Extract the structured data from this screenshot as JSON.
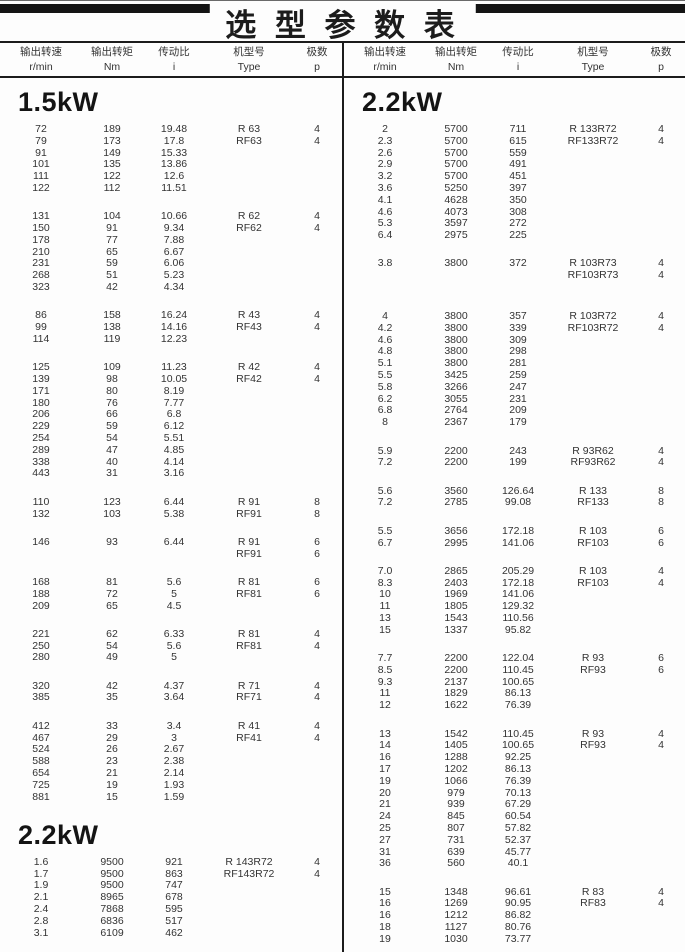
{
  "title": "选 型 参 数 表",
  "colors": {
    "ink": "#1c1c1c",
    "text": "#333333",
    "top_bar": "#141414",
    "background": "#fdfdfd"
  },
  "header": {
    "columns": [
      {
        "key": "speed",
        "cn": "输出转速",
        "unit": "r/min"
      },
      {
        "key": "torque",
        "cn": "输出转矩",
        "unit": "Nm"
      },
      {
        "key": "ratio",
        "cn": "传动比",
        "unit": "i"
      },
      {
        "key": "type",
        "cn": "机型号",
        "unit": "Type"
      },
      {
        "key": "poles",
        "cn": "极数",
        "unit": "p"
      }
    ]
  },
  "left_column": {
    "sections": [
      {
        "heading": "1.5kW",
        "groups": [
          {
            "rows": [
              [
                "72",
                "189",
                "19.48",
                "R 63",
                "4"
              ],
              [
                "79",
                "173",
                "17.8",
                "RF63",
                "4"
              ],
              [
                "91",
                "149",
                "15.33",
                "",
                ""
              ],
              [
                "101",
                "135",
                "13.86",
                "",
                ""
              ],
              [
                "111",
                "122",
                "12.6",
                "",
                ""
              ],
              [
                "122",
                "112",
                "11.51",
                "",
                ""
              ]
            ]
          },
          {
            "rows": [
              [
                "131",
                "104",
                "10.66",
                "R 62",
                "4"
              ],
              [
                "150",
                "91",
                "9.34",
                "RF62",
                "4"
              ],
              [
                "178",
                "77",
                "7.88",
                "",
                ""
              ],
              [
                "210",
                "65",
                "6.67",
                "",
                ""
              ],
              [
                "231",
                "59",
                "6.06",
                "",
                ""
              ],
              [
                "268",
                "51",
                "5.23",
                "",
                ""
              ],
              [
                "323",
                "42",
                "4.34",
                "",
                ""
              ]
            ]
          },
          {
            "rows": [
              [
                "86",
                "158",
                "16.24",
                "R 43",
                "4"
              ],
              [
                "99",
                "138",
                "14.16",
                "RF43",
                "4"
              ],
              [
                "114",
                "119",
                "12.23",
                "",
                ""
              ]
            ]
          },
          {
            "rows": [
              [
                "125",
                "109",
                "11.23",
                "R 42",
                "4"
              ],
              [
                "139",
                "98",
                "10.05",
                "RF42",
                "4"
              ],
              [
                "171",
                "80",
                "8.19",
                "",
                ""
              ],
              [
                "180",
                "76",
                "7.77",
                "",
                ""
              ],
              [
                "206",
                "66",
                "6.8",
                "",
                ""
              ],
              [
                "229",
                "59",
                "6.12",
                "",
                ""
              ],
              [
                "254",
                "54",
                "5.51",
                "",
                ""
              ],
              [
                "289",
                "47",
                "4.85",
                "",
                ""
              ],
              [
                "338",
                "40",
                "4.14",
                "",
                ""
              ],
              [
                "443",
                "31",
                "3.16",
                "",
                ""
              ]
            ]
          },
          {
            "rows": [
              [
                "110",
                "123",
                "6.44",
                "R 91",
                "8"
              ],
              [
                "132",
                "103",
                "5.38",
                "RF91",
                "8"
              ]
            ]
          },
          {
            "rows": [
              [
                "146",
                "93",
                "6.44",
                "R 91",
                "6"
              ],
              [
                "",
                "",
                "",
                "RF91",
                "6"
              ]
            ]
          },
          {
            "rows": [
              [
                "168",
                "81",
                "5.6",
                "R 81",
                "6"
              ],
              [
                "188",
                "72",
                "5",
                "RF81",
                "6"
              ],
              [
                "209",
                "65",
                "4.5",
                "",
                ""
              ]
            ]
          },
          {
            "rows": [
              [
                "221",
                "62",
                "6.33",
                "R 81",
                "4"
              ],
              [
                "250",
                "54",
                "5.6",
                "RF81",
                "4"
              ],
              [
                "280",
                "49",
                "5",
                "",
                ""
              ]
            ]
          },
          {
            "rows": [
              [
                "320",
                "42",
                "4.37",
                "R 71",
                "4"
              ],
              [
                "385",
                "35",
                "3.64",
                "RF71",
                "4"
              ]
            ]
          },
          {
            "rows": [
              [
                "412",
                "33",
                "3.4",
                "R 41",
                "4"
              ],
              [
                "467",
                "29",
                "3",
                "RF41",
                "4"
              ],
              [
                "524",
                "26",
                "2.67",
                "",
                ""
              ],
              [
                "588",
                "23",
                "2.38",
                "",
                ""
              ],
              [
                "654",
                "21",
                "2.14",
                "",
                ""
              ],
              [
                "725",
                "19",
                "1.93",
                "",
                ""
              ],
              [
                "881",
                "15",
                "1.59",
                "",
                ""
              ]
            ]
          }
        ]
      },
      {
        "heading": "2.2kW",
        "groups": [
          {
            "rows": [
              [
                "1.6",
                "9500",
                "921",
                "R 143R72",
                "4"
              ],
              [
                "1.7",
                "9500",
                "863",
                "RF143R72",
                "4"
              ],
              [
                "1.9",
                "9500",
                "747",
                "",
                ""
              ],
              [
                "2.1",
                "8965",
                "678",
                "",
                ""
              ],
              [
                "2.4",
                "7868",
                "595",
                "",
                ""
              ],
              [
                "2.8",
                "6836",
                "517",
                "",
                ""
              ],
              [
                "3.1",
                "6109",
                "462",
                "",
                ""
              ]
            ]
          }
        ]
      }
    ]
  },
  "right_column": {
    "sections": [
      {
        "heading": "2.2kW",
        "groups": [
          {
            "rows": [
              [
                "2",
                "5700",
                "711",
                "R 133R72",
                "4"
              ],
              [
                "2.3",
                "5700",
                "615",
                "RF133R72",
                "4"
              ],
              [
                "2.6",
                "5700",
                "559",
                "",
                ""
              ],
              [
                "2.9",
                "5700",
                "491",
                "",
                ""
              ],
              [
                "3.2",
                "5700",
                "451",
                "",
                ""
              ],
              [
                "3.6",
                "5250",
                "397",
                "",
                ""
              ],
              [
                "4.1",
                "4628",
                "350",
                "",
                ""
              ],
              [
                "4.6",
                "4073",
                "308",
                "",
                ""
              ],
              [
                "5.3",
                "3597",
                "272",
                "",
                ""
              ],
              [
                "6.4",
                "2975",
                "225",
                "",
                ""
              ]
            ]
          },
          {
            "rows": [
              [
                "3.8",
                "3800",
                "372",
                "R 103R73",
                "4"
              ],
              [
                "",
                "",
                "",
                "RF103R73",
                "4"
              ]
            ]
          },
          {
            "rows": [
              [
                "4",
                "3800",
                "357",
                "R 103R72",
                "4"
              ],
              [
                "4.2",
                "3800",
                "339",
                "RF103R72",
                "4"
              ],
              [
                "4.6",
                "3800",
                "309",
                "",
                ""
              ],
              [
                "4.8",
                "3800",
                "298",
                "",
                ""
              ],
              [
                "5.1",
                "3800",
                "281",
                "",
                ""
              ],
              [
                "5.5",
                "3425",
                "259",
                "",
                ""
              ],
              [
                "5.8",
                "3266",
                "247",
                "",
                ""
              ],
              [
                "6.2",
                "3055",
                "231",
                "",
                ""
              ],
              [
                "6.8",
                "2764",
                "209",
                "",
                ""
              ],
              [
                "8",
                "2367",
                "179",
                "",
                ""
              ]
            ]
          },
          {
            "rows": [
              [
                "5.9",
                "2200",
                "243",
                "R 93R62",
                "4"
              ],
              [
                "7.2",
                "2200",
                "199",
                "RF93R62",
                "4"
              ]
            ]
          },
          {
            "rows": [
              [
                "5.6",
                "3560",
                "126.64",
                "R 133",
                "8"
              ],
              [
                "7.2",
                "2785",
                "99.08",
                "RF133",
                "8"
              ]
            ]
          },
          {
            "rows": [
              [
                "5.5",
                "3656",
                "172.18",
                "R 103",
                "6"
              ],
              [
                "6.7",
                "2995",
                "141.06",
                "RF103",
                "6"
              ]
            ]
          },
          {
            "rows": [
              [
                "7.0",
                "2865",
                "205.29",
                "R 103",
                "4"
              ],
              [
                "8.3",
                "2403",
                "172.18",
                "RF103",
                "4"
              ],
              [
                "10",
                "1969",
                "141.06",
                "",
                ""
              ],
              [
                "11",
                "1805",
                "129.32",
                "",
                ""
              ],
              [
                "13",
                "1543",
                "110.56",
                "",
                ""
              ],
              [
                "15",
                "1337",
                "95.82",
                "",
                ""
              ]
            ]
          },
          {
            "rows": [
              [
                "7.7",
                "2200",
                "122.04",
                "R 93",
                "6"
              ],
              [
                "8.5",
                "2200",
                "110.45",
                "RF93",
                "6"
              ],
              [
                "9.3",
                "2137",
                "100.65",
                "",
                ""
              ],
              [
                "11",
                "1829",
                "86.13",
                "",
                ""
              ],
              [
                "12",
                "1622",
                "76.39",
                "",
                ""
              ]
            ]
          },
          {
            "rows": [
              [
                "13",
                "1542",
                "110.45",
                "R 93",
                "4"
              ],
              [
                "14",
                "1405",
                "100.65",
                "RF93",
                "4"
              ],
              [
                "16",
                "1288",
                "92.25",
                "",
                ""
              ],
              [
                "17",
                "1202",
                "86.13",
                "",
                ""
              ],
              [
                "19",
                "1066",
                "76.39",
                "",
                ""
              ],
              [
                "20",
                "979",
                "70.13",
                "",
                ""
              ],
              [
                "21",
                "939",
                "67.29",
                "",
                ""
              ],
              [
                "24",
                "845",
                "60.54",
                "",
                ""
              ],
              [
                "25",
                "807",
                "57.82",
                "",
                ""
              ],
              [
                "27",
                "731",
                "52.37",
                "",
                ""
              ],
              [
                "31",
                "639",
                "45.77",
                "",
                ""
              ],
              [
                "36",
                "560",
                "40.1",
                "",
                ""
              ]
            ]
          },
          {
            "rows": [
              [
                "15",
                "1348",
                "96.61",
                "R 83",
                "4"
              ],
              [
                "16",
                "1269",
                "90.95",
                "RF83",
                "4"
              ],
              [
                "16",
                "1212",
                "86.82",
                "",
                ""
              ],
              [
                "18",
                "1127",
                "80.76",
                "",
                ""
              ],
              [
                "19",
                "1030",
                "73.77",
                "",
                ""
              ]
            ]
          }
        ]
      }
    ]
  }
}
